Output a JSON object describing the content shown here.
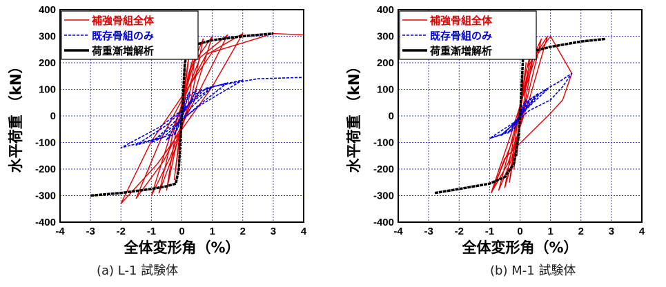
{
  "chart_data": [
    {
      "type": "line",
      "caption": "(a) L-1 試験体",
      "xlabel": "全体変形角（%）",
      "ylabel": "水平荷重 （kN）",
      "xlim": [
        -4,
        4
      ],
      "ylim": [
        -400,
        400
      ],
      "xticks": [
        "-4",
        "-3",
        "-2",
        "-1",
        "0",
        "1",
        "2",
        "3",
        "4"
      ],
      "yticks": [
        "400",
        "300",
        "200",
        "100",
        "0",
        "-100",
        "-200",
        "-300",
        "-400"
      ],
      "grid": true,
      "legend_position": "top-left",
      "series": [
        {
          "name": "補強骨組全体",
          "color": "#e60000",
          "dash": "solid",
          "x": [
            0,
            0.05,
            0.12,
            -0.12,
            -0.05,
            0.1,
            0.25,
            -0.25,
            -0.1,
            0.2,
            0.5,
            0.2,
            -0.2,
            -0.5,
            -0.2,
            0.3,
            0.7,
            0.3,
            -0.3,
            -0.75,
            -0.3,
            0.4,
            1.0,
            0.4,
            -0.4,
            -1.0,
            -0.4,
            0.6,
            1.5,
            0.6,
            -0.6,
            -1.5,
            -0.7,
            0.8,
            2.0,
            1.0,
            -0.8,
            -2.0,
            -1.0,
            1.0,
            3.0,
            4.0
          ],
          "y": [
            0,
            100,
            220,
            -210,
            -90,
            120,
            240,
            -240,
            -110,
            150,
            270,
            40,
            -120,
            -280,
            -60,
            180,
            290,
            60,
            -150,
            -290,
            -70,
            200,
            300,
            80,
            -160,
            -300,
            -80,
            220,
            305,
            100,
            -170,
            -310,
            -90,
            230,
            310,
            110,
            -180,
            -330,
            -95,
            240,
            310,
            305
          ]
        },
        {
          "name": "既存骨組のみ",
          "color": "#0000e6",
          "dash": "dashed",
          "x": [
            0,
            0.1,
            0.25,
            -0.25,
            -0.1,
            0.2,
            0.5,
            0.1,
            -0.2,
            -0.5,
            -0.1,
            0.4,
            1.0,
            0.3,
            -0.4,
            -1.0,
            -0.3,
            0.6,
            1.5,
            0.5,
            -0.6,
            -1.5,
            -0.5,
            0.8,
            2.0,
            0.6,
            -0.8,
            -2.0,
            -0.7,
            1.0,
            2.5,
            4.0
          ],
          "y": [
            0,
            60,
            90,
            -70,
            -40,
            70,
            100,
            20,
            -60,
            -90,
            -20,
            80,
            110,
            30,
            -70,
            -100,
            -30,
            95,
            125,
            35,
            -80,
            -110,
            -35,
            105,
            135,
            40,
            -85,
            -120,
            -40,
            110,
            140,
            145
          ]
        },
        {
          "name": "荷重漸増解析",
          "color": "#000000",
          "dash": "solid-thick",
          "x": [
            -3.0,
            -2.0,
            -1.0,
            -0.5,
            -0.2,
            -0.1,
            -0.05,
            0,
            0.05,
            0.1,
            0.2,
            0.5,
            1.0,
            2.0,
            3.0
          ],
          "y": [
            -300,
            -290,
            -275,
            -265,
            -255,
            -200,
            -100,
            0,
            100,
            200,
            240,
            270,
            285,
            300,
            310
          ]
        }
      ]
    },
    {
      "type": "line",
      "caption": "(b) M-1 試験体",
      "xlabel": "全体変形角（%）",
      "ylabel": "水平荷重 （kN）",
      "xlim": [
        -4,
        4
      ],
      "ylim": [
        -400,
        400
      ],
      "xticks": [
        "-4",
        "-3",
        "-2",
        "-1",
        "0",
        "1",
        "2",
        "3",
        "4"
      ],
      "yticks": [
        "400",
        "300",
        "200",
        "100",
        "0",
        "-100",
        "-200",
        "-300",
        "-400"
      ],
      "grid": true,
      "legend_position": "top-left",
      "series": [
        {
          "name": "補強骨組全体",
          "color": "#e60000",
          "dash": "solid",
          "x": [
            0,
            0.05,
            0.1,
            -0.1,
            -0.05,
            0.1,
            0.2,
            -0.2,
            -0.1,
            0.15,
            0.35,
            0.1,
            -0.15,
            -0.35,
            -0.1,
            0.2,
            0.5,
            0.15,
            -0.2,
            -0.5,
            -0.15,
            0.3,
            0.7,
            0.2,
            -0.3,
            -0.7,
            -0.2,
            0.4,
            0.9,
            0.3,
            -0.4,
            -0.95,
            -0.3,
            0.5,
            1.0,
            1.7,
            1.4,
            1.0,
            -0.5,
            -0.9,
            -0.2
          ],
          "y": [
            0,
            80,
            160,
            -150,
            -70,
            110,
            200,
            -200,
            -90,
            140,
            240,
            30,
            -120,
            -250,
            -40,
            170,
            270,
            40,
            -150,
            -270,
            -50,
            190,
            290,
            50,
            -170,
            -280,
            -60,
            210,
            300,
            60,
            -180,
            -290,
            -70,
            220,
            300,
            160,
            60,
            10,
            -160,
            -280,
            -80
          ]
        },
        {
          "name": "既存骨組のみ",
          "color": "#0000e6",
          "dash": "dashed",
          "x": [
            0,
            0.1,
            0.2,
            -0.2,
            -0.1,
            0.2,
            0.4,
            0.05,
            -0.2,
            -0.4,
            -0.05,
            0.3,
            0.6,
            0.1,
            -0.3,
            -0.65,
            -0.1,
            0.5,
            0.9,
            0.2,
            -0.5,
            -1.0,
            -0.2,
            0.7,
            1.3,
            1.7,
            1.4,
            1.0,
            0.3,
            -0.6,
            -1.0
          ],
          "y": [
            0,
            40,
            60,
            -50,
            -30,
            50,
            70,
            10,
            -50,
            -65,
            -10,
            60,
            85,
            15,
            -55,
            -75,
            -20,
            75,
            100,
            25,
            -65,
            -85,
            -25,
            90,
            130,
            160,
            110,
            60,
            20,
            -70,
            -85
          ]
        },
        {
          "name": "荷重漸増解析",
          "color": "#000000",
          "dash": "solid-thick",
          "x": [
            -2.8,
            -2.0,
            -1.0,
            -0.5,
            -0.2,
            -0.05,
            0,
            0.05,
            0.1,
            0.3,
            1.0,
            2.0,
            2.8
          ],
          "y": [
            -290,
            -275,
            -255,
            -230,
            -180,
            -80,
            0,
            100,
            225,
            240,
            260,
            280,
            290
          ]
        }
      ]
    }
  ]
}
